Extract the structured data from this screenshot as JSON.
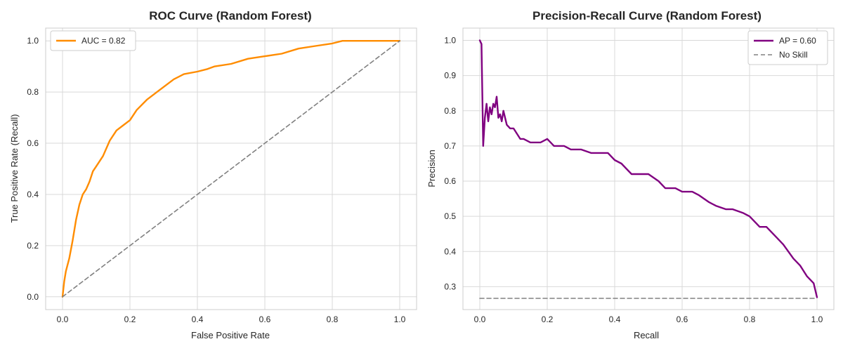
{
  "chart_data": [
    {
      "type": "line",
      "title": "ROC Curve (Random Forest)",
      "xlabel": "False Positive Rate",
      "ylabel": "True Positive Rate (Recall)",
      "xlim": [
        -0.05,
        1.05
      ],
      "ylim": [
        -0.05,
        1.05
      ],
      "xticks": [
        0.0,
        0.2,
        0.4,
        0.6,
        0.8,
        1.0
      ],
      "yticks": [
        0.0,
        0.2,
        0.4,
        0.6,
        0.8,
        1.0
      ],
      "tick_labels_x": [
        "0.0",
        "0.2",
        "0.4",
        "0.6",
        "0.8",
        "1.0"
      ],
      "tick_labels_y": [
        "0.0",
        "0.2",
        "0.4",
        "0.6",
        "0.8",
        "1.0"
      ],
      "grid": true,
      "legend": "top-left",
      "series": [
        {
          "name": "AUC = 0.82",
          "color": "#ff8c00",
          "dash": "solid",
          "x": [
            0.0,
            0.005,
            0.01,
            0.02,
            0.03,
            0.04,
            0.05,
            0.06,
            0.07,
            0.08,
            0.09,
            0.1,
            0.12,
            0.14,
            0.16,
            0.18,
            0.2,
            0.22,
            0.25,
            0.28,
            0.3,
            0.33,
            0.36,
            0.4,
            0.43,
            0.45,
            0.5,
            0.55,
            0.6,
            0.65,
            0.7,
            0.75,
            0.8,
            0.83,
            0.9,
            1.0
          ],
          "y": [
            0.0,
            0.06,
            0.1,
            0.15,
            0.22,
            0.3,
            0.36,
            0.4,
            0.42,
            0.45,
            0.49,
            0.51,
            0.55,
            0.61,
            0.65,
            0.67,
            0.69,
            0.73,
            0.77,
            0.8,
            0.82,
            0.85,
            0.87,
            0.88,
            0.89,
            0.9,
            0.91,
            0.93,
            0.94,
            0.95,
            0.97,
            0.98,
            0.99,
            1.0,
            1.0,
            1.0
          ]
        },
        {
          "name": "",
          "color": "#808080",
          "dash": "dashed",
          "x": [
            0.0,
            1.0
          ],
          "y": [
            0.0,
            1.0
          ]
        }
      ]
    },
    {
      "type": "line",
      "title": "Precision-Recall Curve (Random Forest)",
      "xlabel": "Recall",
      "ylabel": "Precision",
      "xlim": [
        -0.05,
        1.05
      ],
      "ylim": [
        0.235,
        1.035
      ],
      "xticks": [
        0.0,
        0.2,
        0.4,
        0.6,
        0.8,
        1.0
      ],
      "yticks": [
        0.3,
        0.4,
        0.5,
        0.6,
        0.7,
        0.8,
        0.9,
        1.0
      ],
      "tick_labels_x": [
        "0.0",
        "0.2",
        "0.4",
        "0.6",
        "0.8",
        "1.0"
      ],
      "tick_labels_y": [
        "0.3",
        "0.4",
        "0.5",
        "0.6",
        "0.7",
        "0.8",
        "0.9",
        "1.0"
      ],
      "grid": true,
      "legend": "top-right",
      "series": [
        {
          "name": "AP = 0.60",
          "color": "#800080",
          "dash": "solid",
          "x": [
            0.0,
            0.005,
            0.01,
            0.015,
            0.02,
            0.025,
            0.03,
            0.035,
            0.04,
            0.045,
            0.05,
            0.055,
            0.06,
            0.065,
            0.07,
            0.075,
            0.08,
            0.09,
            0.1,
            0.12,
            0.13,
            0.15,
            0.18,
            0.2,
            0.22,
            0.25,
            0.27,
            0.3,
            0.33,
            0.35,
            0.38,
            0.4,
            0.42,
            0.45,
            0.48,
            0.5,
            0.53,
            0.55,
            0.58,
            0.6,
            0.63,
            0.65,
            0.68,
            0.7,
            0.73,
            0.75,
            0.78,
            0.8,
            0.83,
            0.85,
            0.88,
            0.9,
            0.93,
            0.95,
            0.97,
            0.99,
            1.0
          ],
          "y": [
            1.0,
            0.99,
            0.7,
            0.78,
            0.82,
            0.77,
            0.81,
            0.79,
            0.82,
            0.81,
            0.84,
            0.78,
            0.79,
            0.77,
            0.8,
            0.78,
            0.76,
            0.75,
            0.75,
            0.72,
            0.72,
            0.71,
            0.71,
            0.72,
            0.7,
            0.7,
            0.69,
            0.69,
            0.68,
            0.68,
            0.68,
            0.66,
            0.65,
            0.62,
            0.62,
            0.62,
            0.6,
            0.58,
            0.58,
            0.57,
            0.57,
            0.56,
            0.54,
            0.53,
            0.52,
            0.52,
            0.51,
            0.5,
            0.47,
            0.47,
            0.44,
            0.42,
            0.38,
            0.36,
            0.33,
            0.31,
            0.27
          ]
        },
        {
          "name": "No Skill",
          "color": "#808080",
          "dash": "dashed",
          "x": [
            0.0,
            1.0
          ],
          "y": [
            0.267,
            0.267
          ]
        }
      ]
    }
  ]
}
